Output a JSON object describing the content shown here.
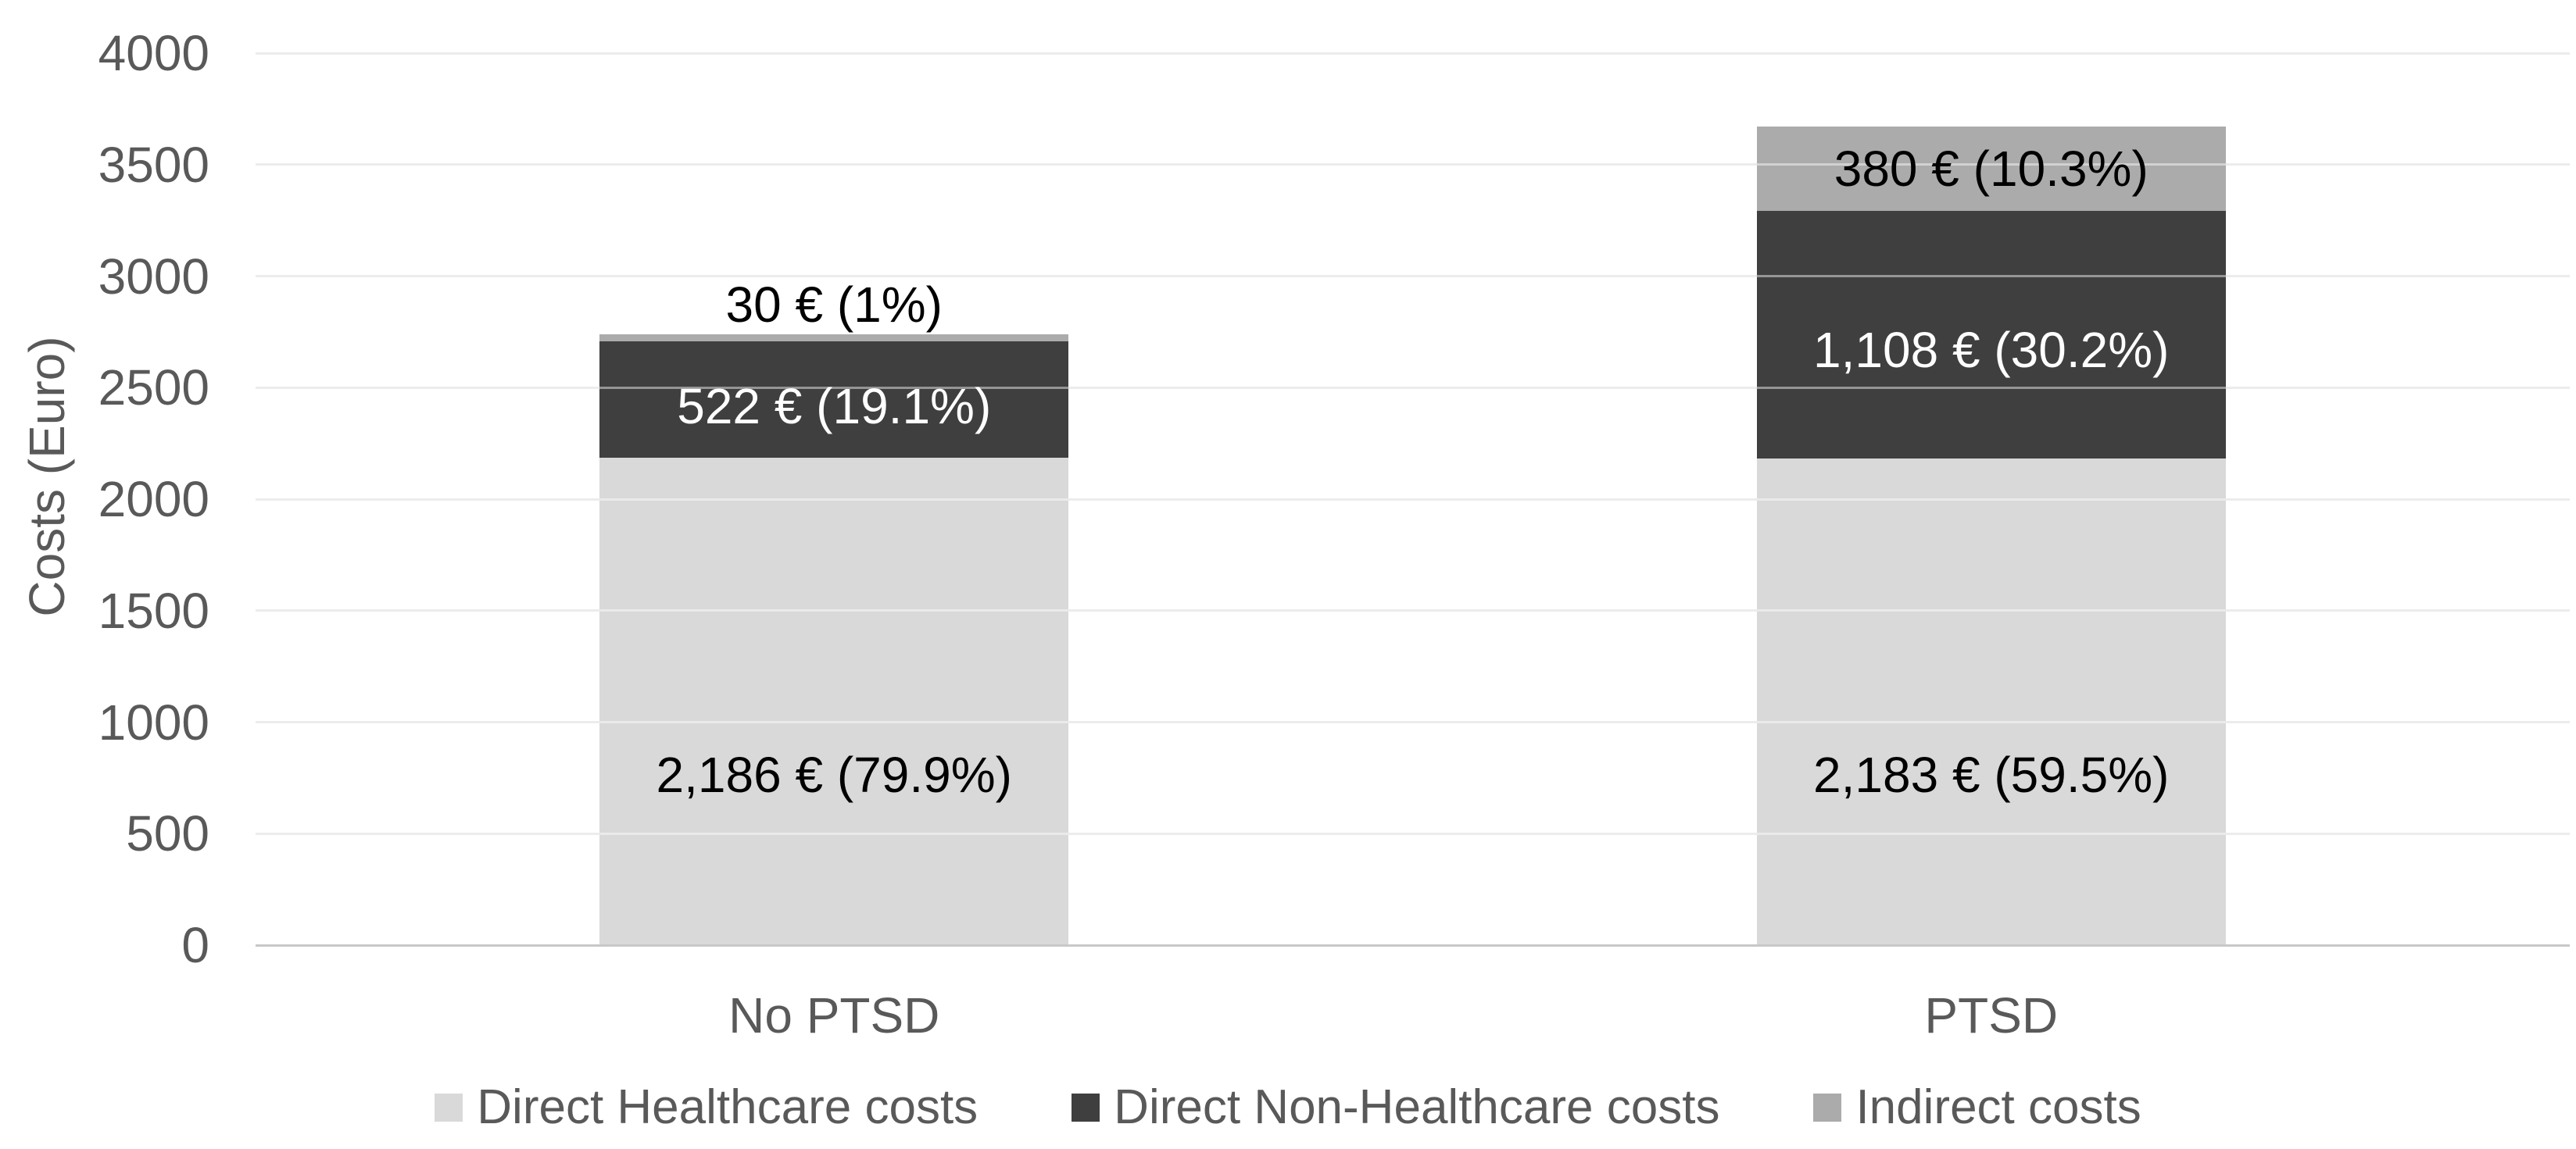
{
  "chart_data": {
    "type": "bar",
    "stacked": true,
    "title": "",
    "xlabel": "",
    "ylabel": "Costs (Euro)",
    "ylim": [
      0,
      4000
    ],
    "yticks": [
      0,
      500,
      1000,
      1500,
      2000,
      2500,
      3000,
      3500,
      4000
    ],
    "categories": [
      "No PTSD",
      "PTSD"
    ],
    "series": [
      {
        "name": "Direct Healthcare costs",
        "color": "#d9d9d9",
        "label_color": "#000000",
        "values": [
          2186,
          2183
        ],
        "labels": [
          "2,186 € (79.9%)",
          "2,183 € (59.5%)"
        ]
      },
      {
        "name": "Direct Non-Healthcare costs",
        "color": "#3f3f3f",
        "label_color": "#ffffff",
        "values": [
          522,
          1108
        ],
        "labels": [
          "522 € (19.1%)",
          "1,108 € (30.2%)"
        ]
      },
      {
        "name": "Indirect costs",
        "color": "#ababab",
        "label_color": "#000000",
        "values": [
          30,
          380
        ],
        "labels": [
          "30 € (1%)",
          "380 € (10.3%)"
        ]
      }
    ],
    "totals": [
      2738,
      3671
    ],
    "grid": true,
    "legend_position": "bottom",
    "colors": {
      "background": "#ffffff",
      "axis_text": "#595959",
      "gridline": "#dcdcdc",
      "axis_line": "#c8c8c8"
    }
  }
}
